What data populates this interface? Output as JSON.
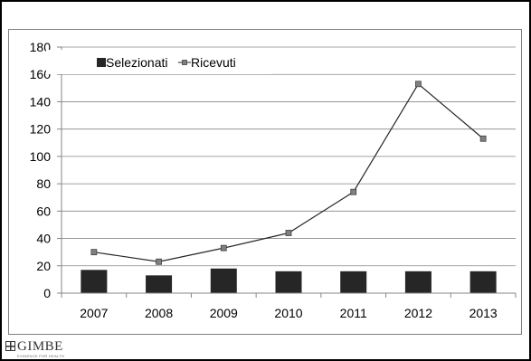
{
  "branding": {
    "logo_name": "GIMBE",
    "logo_tagline": "EVIDENCE FOR HEALTH"
  },
  "chart_data": {
    "type": "bar",
    "categories": [
      "2007",
      "2008",
      "2009",
      "2010",
      "2011",
      "2012",
      "2013"
    ],
    "series": [
      {
        "name": "Selezionati",
        "type": "bar",
        "color": "#262626",
        "values": [
          17,
          13,
          18,
          16,
          16,
          16,
          16
        ]
      },
      {
        "name": "Ricevuti",
        "type": "line",
        "color": "#262626",
        "marker_color": "#808080",
        "values": [
          30,
          23,
          33,
          44,
          74,
          153,
          113
        ]
      }
    ],
    "ylim": [
      0,
      180
    ],
    "yticks": [
      0,
      20,
      40,
      60,
      80,
      100,
      120,
      140,
      160,
      180
    ],
    "grid": true,
    "legend_position": "top-left",
    "title": "",
    "xlabel": "",
    "ylabel": ""
  }
}
